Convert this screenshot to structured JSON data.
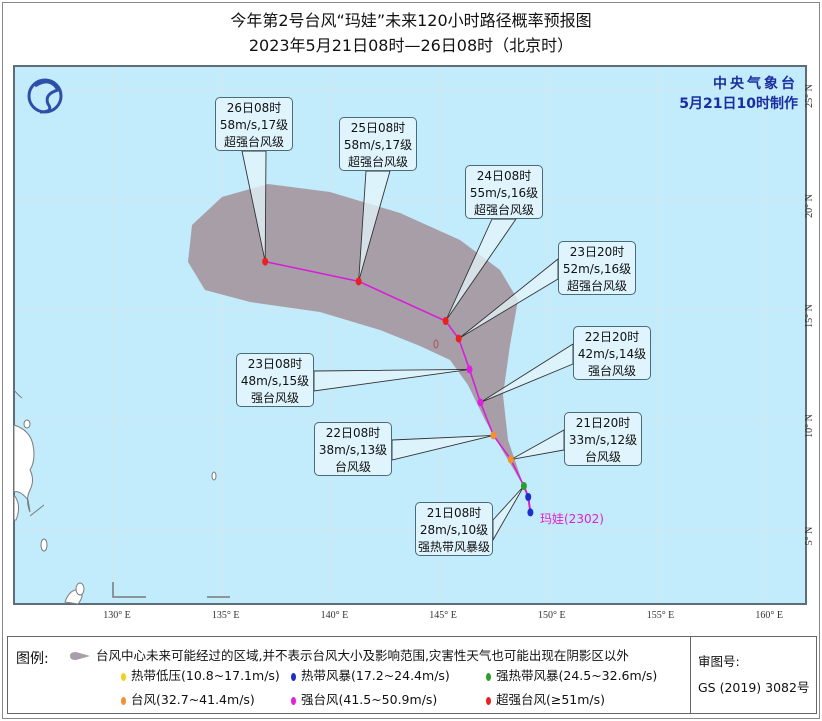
{
  "title": {
    "line1": "今年第2号台风“玛娃”未来120小时路径概率预报图",
    "line2": "2023年5月21日08时—26日08时（北京时）"
  },
  "agency": {
    "name": "中央气象台",
    "issued": "5月21日10时制作"
  },
  "typhoon_label": "玛娃(2302)",
  "axes": {
    "longitude_ticks": [
      "130° E",
      "135° E",
      "140° E",
      "145° E",
      "150° E",
      "155° E",
      "160° E"
    ],
    "latitude_ticks": [
      "25° N",
      "20° N",
      "15° N",
      "10° N",
      "5° N"
    ]
  },
  "colors": {
    "ocean": "#c2ebfb",
    "cone": "#a79ea8",
    "track": "#d61fd6",
    "td": "#f0d020",
    "ts": "#1d2fc8",
    "sts": "#2e9d2e",
    "ty": "#f39033",
    "sty": "#e020e0",
    "super_ty": "#e8231f"
  },
  "past_track": [
    {
      "lon": 149.2,
      "lat": 5.8,
      "level": "ts"
    },
    {
      "lon": 149.1,
      "lat": 6.5,
      "level": "ts"
    }
  ],
  "forecast_points": [
    {
      "time": "21日08时",
      "wind": "28m/s,10级",
      "grade": "强热带风暴级",
      "level": "sts",
      "lon": 148.9,
      "lat": 7.0
    },
    {
      "time": "21日20时",
      "wind": "33m/s,12级",
      "grade": "台风级",
      "level": "ty",
      "lon": 148.3,
      "lat": 8.2
    },
    {
      "time": "22日08时",
      "wind": "38m/s,13级",
      "grade": "台风级",
      "level": "ty",
      "lon": 147.5,
      "lat": 9.3
    },
    {
      "time": "22日20时",
      "wind": "42m/s,14级",
      "grade": "强台风级",
      "level": "sty",
      "lon": 146.9,
      "lat": 10.8
    },
    {
      "time": "23日08时",
      "wind": "48m/s,15级",
      "grade": "强台风级",
      "level": "sty",
      "lon": 146.4,
      "lat": 12.3
    },
    {
      "time": "23日20时",
      "wind": "52m/s,16级",
      "grade": "超强台风级",
      "level": "super_ty",
      "lon": 145.9,
      "lat": 13.7
    },
    {
      "time": "24日08时",
      "wind": "55m/s,16级",
      "grade": "超强台风级",
      "level": "super_ty",
      "lon": 145.3,
      "lat": 14.5
    },
    {
      "time": "25日08时",
      "wind": "58m/s,17级",
      "grade": "超强台风级",
      "level": "super_ty",
      "lon": 141.3,
      "lat": 16.3
    },
    {
      "time": "26日08时",
      "wind": "58m/s,17级",
      "grade": "超强台风级",
      "level": "super_ty",
      "lon": 137.0,
      "lat": 17.2
    }
  ],
  "legend": {
    "title": "图例:",
    "cone_text": "台风中心未来可能经过的区域,并不表示台风大小及影响范围,灾害性天气也可能出现在阴影区以外",
    "items": [
      {
        "label": "热带低压(10.8~17.1m/s)",
        "level": "td"
      },
      {
        "label": "热带风暴(17.2~24.4m/s)",
        "level": "ts"
      },
      {
        "label": "强热带风暴(24.5~32.6m/s)",
        "level": "sts"
      },
      {
        "label": "台风(32.7~41.4m/s)",
        "level": "ty"
      },
      {
        "label": "强台风(41.5~50.9m/s)",
        "level": "sty"
      },
      {
        "label": "超强台风(≥51m/s)",
        "level": "super_ty"
      }
    ],
    "review_label": "审图号:",
    "review_number": "GS (2019) 3082号"
  }
}
